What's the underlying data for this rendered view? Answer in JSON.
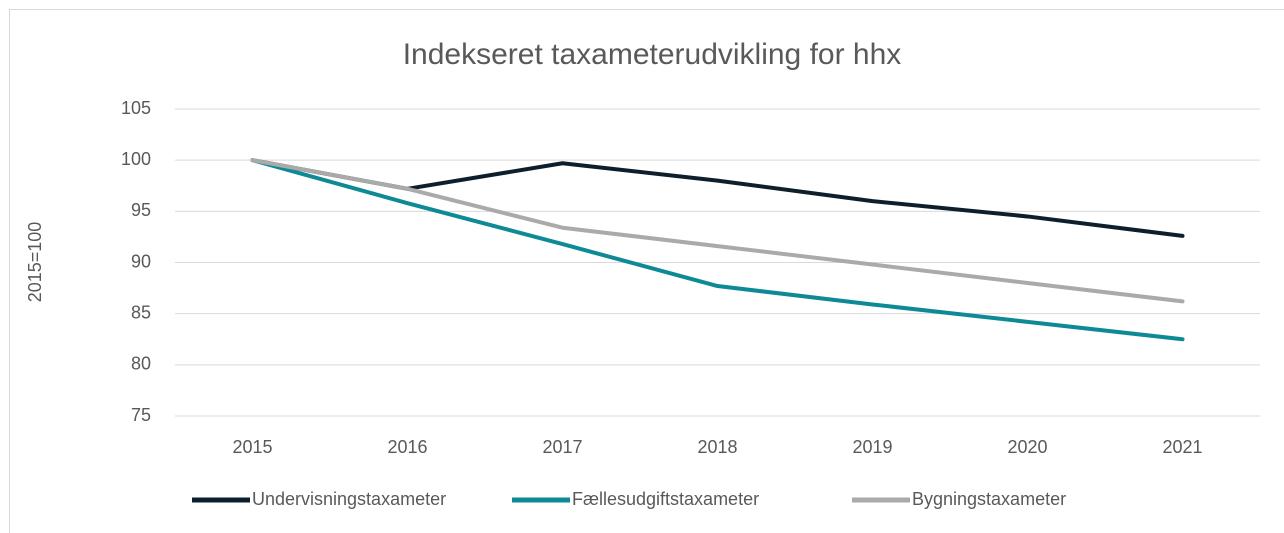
{
  "chart_data": {
    "type": "line",
    "title": "Indekseret taxameterudvikling for hhx",
    "ylabel": "2015=100",
    "categories": [
      "2015",
      "2016",
      "2017",
      "2018",
      "2019",
      "2020",
      "2021"
    ],
    "series": [
      {
        "name": "Undervisningstaxameter",
        "color": "#0d1f2d",
        "values": [
          100,
          97.2,
          99.7,
          98.0,
          96.0,
          94.5,
          92.6
        ]
      },
      {
        "name": "Fællesudgiftstaxameter",
        "color": "#0e8a96",
        "values": [
          100,
          95.8,
          91.8,
          87.7,
          85.9,
          84.2,
          82.5
        ]
      },
      {
        "name": "Bygningstaxameter",
        "color": "#aaaaaa",
        "values": [
          100,
          97.2,
          93.4,
          91.6,
          89.8,
          88.0,
          86.2
        ]
      }
    ],
    "ylim": [
      75,
      105
    ],
    "yticks": [
      75,
      80,
      85,
      90,
      95,
      100,
      105
    ],
    "grid": true,
    "legend": "bottom"
  }
}
